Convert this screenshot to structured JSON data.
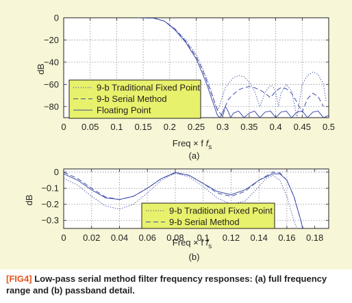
{
  "colors": {
    "panel": "#f7f7d7",
    "series": "#3b4aa6",
    "legend": "#e7f16c",
    "caption_tag": "#e8541e"
  },
  "caption": {
    "tag": "[FIG4]",
    "text": "Low-pass serial method filter frequency responses: (a) full frequency range and (b) passband detail."
  },
  "chart_data": [
    {
      "type": "line",
      "panel_label": "(a)",
      "xlabel": "Freq × f",
      "xlabel_sub": "s",
      "ylabel": "dB",
      "xlim": [
        0,
        0.5
      ],
      "ylim": [
        -90,
        0
      ],
      "xticks": [
        0,
        0.05,
        0.1,
        0.15,
        0.2,
        0.25,
        0.3,
        0.35,
        0.4,
        0.45,
        0.5
      ],
      "xtick_labels": [
        "0",
        "0.05",
        "0.1",
        "0.15",
        "0.2",
        "0.25",
        "0.3",
        "0.35",
        "0.4",
        "0.45",
        "0.5"
      ],
      "yticks": [
        0,
        -20,
        -40,
        -60,
        -80
      ],
      "ytick_labels": [
        "0",
        "−20",
        "−40",
        "−60",
        "−80"
      ],
      "grid": true,
      "legend_position": "bottom-left",
      "series": [
        {
          "name": "9-b Traditional Fixed Point",
          "style": "dotted",
          "x": [
            0.14,
            0.17,
            0.19,
            0.21,
            0.23,
            0.25,
            0.26,
            0.27,
            0.28,
            0.285,
            0.29,
            0.295,
            0.3,
            0.305,
            0.31,
            0.32,
            0.33,
            0.34,
            0.35,
            0.36,
            0.37,
            0.38,
            0.39,
            0.395,
            0.4,
            0.405,
            0.41,
            0.42,
            0.43,
            0.44,
            0.45,
            0.46,
            0.47,
            0.48,
            0.49,
            0.495
          ],
          "y": [
            0,
            -0.3,
            -3,
            -10,
            -20,
            -33,
            -43,
            -55,
            -68,
            -77,
            -84,
            -78,
            -70,
            -63,
            -60,
            -54,
            -52,
            -53,
            -58,
            -66,
            -80,
            -67,
            -61,
            -62,
            -67,
            -80,
            -68,
            -60,
            -66,
            -90,
            -60,
            -52,
            -49,
            -51,
            -60,
            -75
          ]
        },
        {
          "name": "9-b Serial Method",
          "style": "dashed",
          "x": [
            0.14,
            0.17,
            0.19,
            0.21,
            0.23,
            0.25,
            0.26,
            0.27,
            0.28,
            0.29,
            0.3,
            0.305,
            0.31,
            0.32,
            0.33,
            0.34,
            0.35,
            0.36,
            0.37,
            0.38,
            0.39,
            0.4,
            0.41,
            0.42,
            0.43,
            0.44,
            0.45,
            0.46,
            0.47,
            0.48,
            0.49
          ],
          "y": [
            0,
            -0.3,
            -3,
            -10,
            -21,
            -35,
            -45,
            -57,
            -70,
            -83,
            -89,
            -80,
            -74,
            -69,
            -65,
            -63,
            -62,
            -63,
            -65,
            -68,
            -72,
            -66,
            -63,
            -64,
            -68,
            -76,
            -85,
            -73,
            -68,
            -71,
            -80
          ]
        },
        {
          "name": "Floating Point",
          "style": "solid",
          "x": [
            0.14,
            0.17,
            0.19,
            0.21,
            0.23,
            0.25,
            0.26,
            0.27,
            0.28,
            0.29,
            0.295,
            0.3,
            0.305,
            0.31,
            0.315,
            0.32,
            0.33,
            0.34,
            0.35,
            0.36,
            0.37,
            0.38,
            0.39,
            0.4,
            0.41,
            0.42,
            0.43,
            0.44,
            0.45,
            0.46,
            0.47,
            0.48,
            0.49,
            0.5
          ],
          "y": [
            0,
            -0.3,
            -3,
            -11,
            -22,
            -37,
            -48,
            -60,
            -74,
            -88,
            -90,
            -85,
            -80,
            -84,
            -90,
            -86,
            -84,
            -90,
            -86,
            -84,
            -90,
            -85,
            -84,
            -90,
            -85,
            -84,
            -90,
            -85,
            -84,
            -90,
            -85,
            -84,
            -90,
            -88
          ]
        }
      ]
    },
    {
      "type": "line",
      "panel_label": "(b)",
      "xlabel": "Freq × f",
      "xlabel_sub": "s",
      "ylabel": "dB",
      "xlim": [
        0,
        0.19
      ],
      "ylim": [
        -0.35,
        0.02
      ],
      "xticks": [
        0,
        0.02,
        0.04,
        0.06,
        0.08,
        0.1,
        0.12,
        0.14,
        0.16,
        0.18
      ],
      "xtick_labels": [
        "0",
        "0.02",
        "0.04",
        "0.06",
        "0.08",
        "0.1",
        "0.12",
        "0.14",
        "0.16",
        "0.18"
      ],
      "yticks": [
        0,
        -0.1,
        -0.2,
        -0.3
      ],
      "ytick_labels": [
        "0",
        "−0.1",
        "−0.2",
        "−0.3"
      ],
      "grid": true,
      "legend_position": "bottom-right",
      "series": [
        {
          "name": "9-b Traditional Fixed Point",
          "style": "dotted",
          "x": [
            0,
            0.01,
            0.02,
            0.03,
            0.04,
            0.05,
            0.06,
            0.07,
            0.08,
            0.09,
            0.1,
            0.11,
            0.12,
            0.13,
            0.14,
            0.145,
            0.15,
            0.155,
            0.16,
            0.165,
            0.17
          ],
          "y": [
            -0.04,
            -0.08,
            -0.15,
            -0.21,
            -0.23,
            -0.2,
            -0.13,
            -0.05,
            -0.005,
            -0.03,
            -0.09,
            -0.16,
            -0.2,
            -0.18,
            -0.09,
            -0.04,
            -0.02,
            -0.05,
            -0.15,
            -0.3,
            -0.42
          ]
        },
        {
          "name": "9-b Serial Method",
          "style": "dashed",
          "x": [
            0,
            0.01,
            0.02,
            0.03,
            0.04,
            0.05,
            0.06,
            0.07,
            0.08,
            0.09,
            0.1,
            0.11,
            0.12,
            0.13,
            0.14,
            0.15,
            0.155,
            0.16,
            0.165,
            0.17,
            0.174
          ],
          "y": [
            0,
            -0.04,
            -0.1,
            -0.155,
            -0.17,
            -0.15,
            -0.1,
            -0.04,
            -0.005,
            -0.02,
            -0.07,
            -0.13,
            -0.15,
            -0.12,
            -0.05,
            0,
            -0.005,
            -0.05,
            -0.15,
            -0.3,
            -0.42
          ]
        },
        {
          "name": "",
          "style": "solid",
          "x": [
            0,
            0.01,
            0.02,
            0.03,
            0.04,
            0.05,
            0.06,
            0.07,
            0.08,
            0.09,
            0.1,
            0.11,
            0.12,
            0.13,
            0.14,
            0.15,
            0.155,
            0.16,
            0.165,
            0.17,
            0.173
          ],
          "y": [
            -0.01,
            -0.05,
            -0.11,
            -0.16,
            -0.17,
            -0.15,
            -0.1,
            -0.04,
            -0.002,
            -0.02,
            -0.07,
            -0.12,
            -0.14,
            -0.11,
            -0.05,
            -0.01,
            -0.01,
            -0.05,
            -0.15,
            -0.3,
            -0.42
          ]
        }
      ]
    }
  ]
}
